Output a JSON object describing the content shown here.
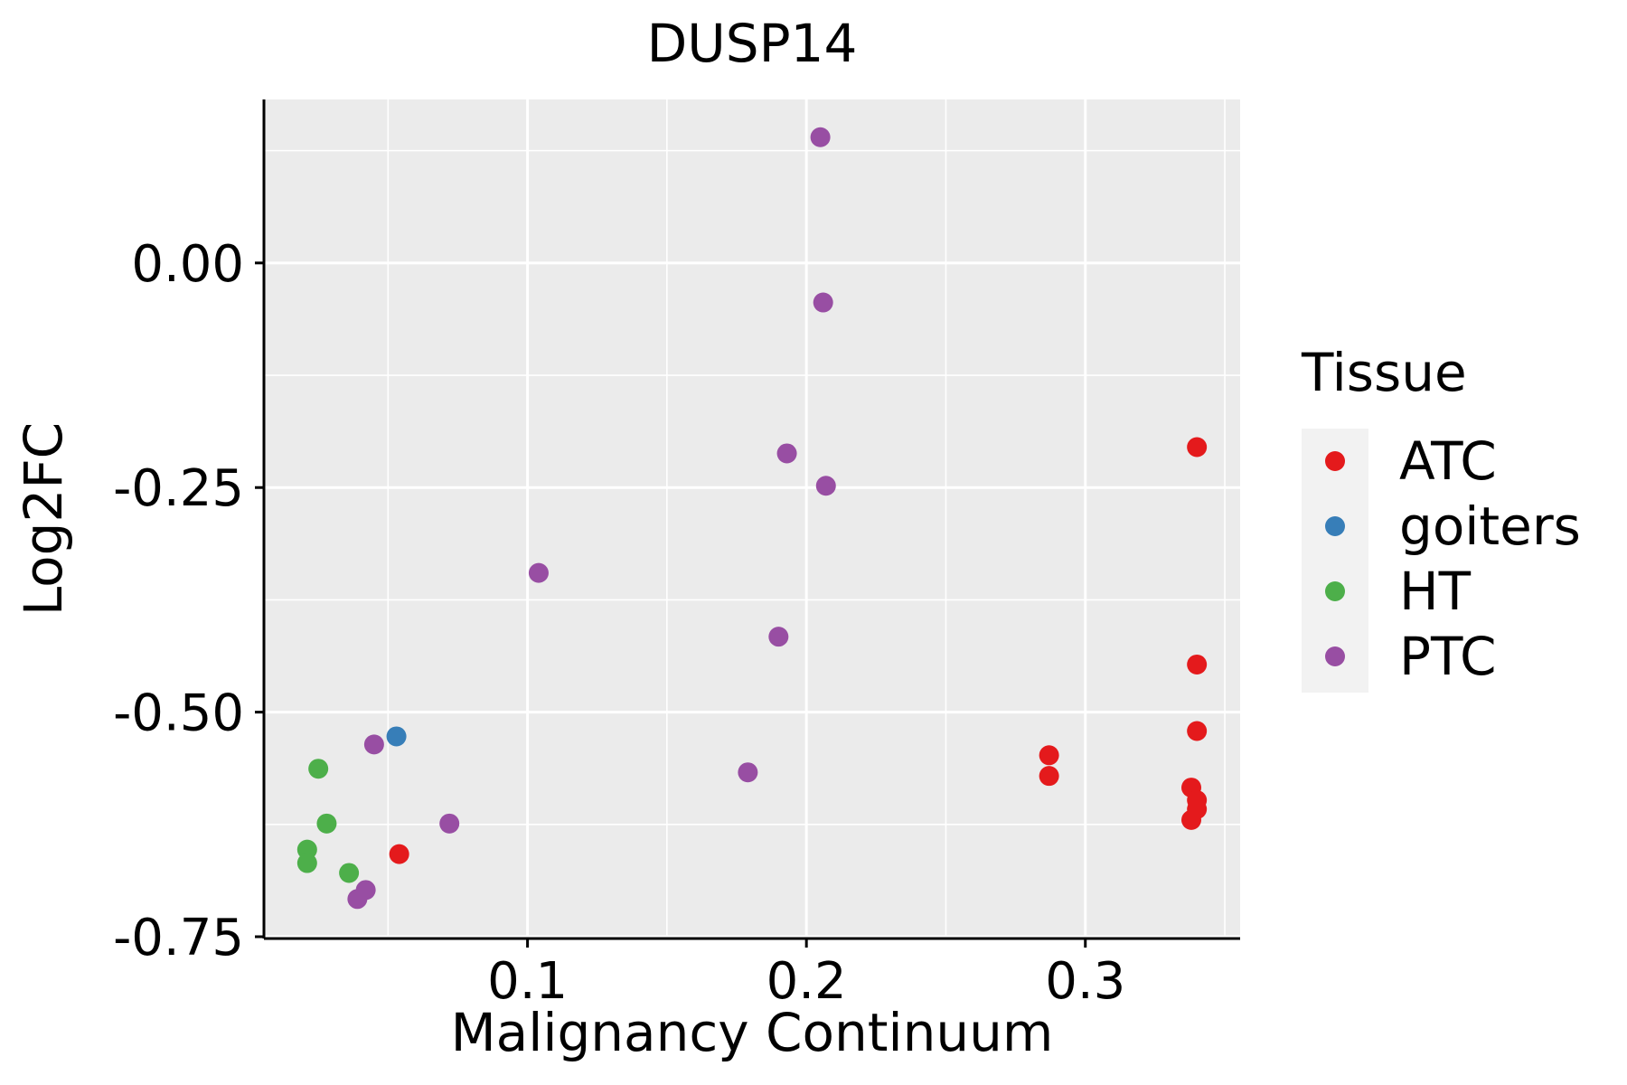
{
  "chart_data": {
    "type": "scatter",
    "title": "DUSP14",
    "xlabel": "Malignancy Continuum",
    "ylabel": "Log2FC",
    "xlim": [
      0.0055,
      0.3555
    ],
    "ylim": [
      -0.752,
      0.182
    ],
    "x_ticks": [
      {
        "value": 0.1,
        "label": "0.1"
      },
      {
        "value": 0.2,
        "label": "0.2"
      },
      {
        "value": 0.3,
        "label": "0.3"
      }
    ],
    "y_ticks": [
      {
        "value": 0.0,
        "label": "0.00"
      },
      {
        "value": -0.25,
        "label": "-0.25"
      },
      {
        "value": -0.5,
        "label": "-0.50"
      },
      {
        "value": -0.75,
        "label": "-0.75"
      }
    ],
    "grid": true,
    "legend": {
      "title": "Tissue",
      "placement": "right",
      "entries": [
        {
          "name": "ATC",
          "color": "#E41A1C"
        },
        {
          "name": "goiters",
          "color": "#377EB8"
        },
        {
          "name": "HT",
          "color": "#4DAF4A"
        },
        {
          "name": "PTC",
          "color": "#984EA3"
        }
      ]
    },
    "series": [
      {
        "name": "ATC",
        "color": "#E41A1C",
        "points": [
          {
            "x": 0.34,
            "y": -0.205
          },
          {
            "x": 0.34,
            "y": -0.447
          },
          {
            "x": 0.34,
            "y": -0.521
          },
          {
            "x": 0.287,
            "y": -0.548
          },
          {
            "x": 0.287,
            "y": -0.571
          },
          {
            "x": 0.338,
            "y": -0.584
          },
          {
            "x": 0.34,
            "y": -0.598
          },
          {
            "x": 0.34,
            "y": -0.608
          },
          {
            "x": 0.338,
            "y": -0.62
          },
          {
            "x": 0.054,
            "y": -0.658
          }
        ]
      },
      {
        "name": "goiters",
        "color": "#377EB8",
        "points": [
          {
            "x": 0.053,
            "y": -0.527
          }
        ]
      },
      {
        "name": "HT",
        "color": "#4DAF4A",
        "points": [
          {
            "x": 0.025,
            "y": -0.563
          },
          {
            "x": 0.028,
            "y": -0.624
          },
          {
            "x": 0.021,
            "y": -0.653
          },
          {
            "x": 0.021,
            "y": -0.668
          },
          {
            "x": 0.036,
            "y": -0.679
          }
        ]
      },
      {
        "name": "PTC",
        "color": "#984EA3",
        "points": [
          {
            "x": 0.205,
            "y": 0.14
          },
          {
            "x": 0.206,
            "y": -0.044
          },
          {
            "x": 0.193,
            "y": -0.212
          },
          {
            "x": 0.207,
            "y": -0.248
          },
          {
            "x": 0.104,
            "y": -0.345
          },
          {
            "x": 0.19,
            "y": -0.416
          },
          {
            "x": 0.045,
            "y": -0.536
          },
          {
            "x": 0.179,
            "y": -0.567
          },
          {
            "x": 0.072,
            "y": -0.624
          },
          {
            "x": 0.042,
            "y": -0.698
          },
          {
            "x": 0.039,
            "y": -0.708
          }
        ]
      }
    ]
  }
}
